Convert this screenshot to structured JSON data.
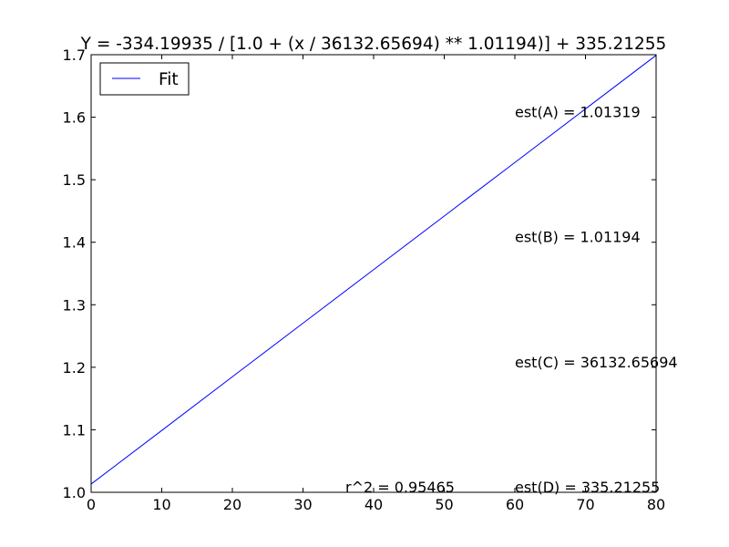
{
  "chart_data": {
    "type": "line",
    "title": "Y = -334.19935 / [1.0 + (x / 36132.65694) ** 1.01194)] + 335.21255",
    "xlabel": "",
    "ylabel": "",
    "xlim": [
      0,
      80
    ],
    "ylim": [
      1.0,
      1.7
    ],
    "x_ticks": [
      0,
      10,
      20,
      30,
      40,
      50,
      60,
      70,
      80
    ],
    "y_ticks": [
      1.0,
      1.1,
      1.2,
      1.3,
      1.4,
      1.5,
      1.6,
      1.7
    ],
    "x_tick_labels": [
      "0",
      "10",
      "20",
      "30",
      "40",
      "50",
      "60",
      "70",
      "80"
    ],
    "y_tick_labels": [
      "1.0",
      "1.1",
      "1.2",
      "1.3",
      "1.4",
      "1.5",
      "1.6",
      "1.7"
    ],
    "grid": false,
    "legend": {
      "placement": "upper-left",
      "entries": [
        "Fit"
      ]
    },
    "series": [
      {
        "name": "Fit",
        "color": "#0000ff",
        "x": [
          0,
          10,
          20,
          30,
          40,
          50,
          60,
          70,
          80
        ],
        "y": [
          1.0132,
          1.0989,
          1.1848,
          1.2705,
          1.3562,
          1.4419,
          1.5276,
          1.6133,
          1.699
        ]
      }
    ],
    "annotations": [
      {
        "text": "est(A) = 1.01319",
        "x": 60,
        "y": 1.6
      },
      {
        "text": "est(B) = 1.01194",
        "x": 60,
        "y": 1.4
      },
      {
        "text": "est(C) = 36132.65694",
        "x": 60,
        "y": 1.2
      },
      {
        "text": "est(D) = 335.21255",
        "x": 60,
        "y": 1.0
      },
      {
        "text": "r^2 = 0.95465",
        "x": 36,
        "y": 1.0
      }
    ]
  }
}
